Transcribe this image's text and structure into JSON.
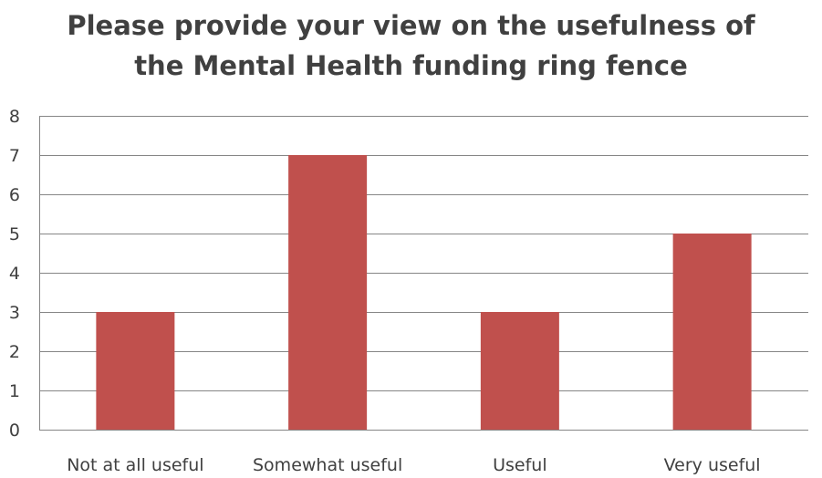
{
  "chart_data": {
    "type": "bar",
    "title_lines": [
      "Please provide your view on the usefulness of",
      "the Mental Health funding ring fence"
    ],
    "categories": [
      "Not at all useful",
      "Somewhat useful",
      "Useful",
      "Very useful"
    ],
    "values": [
      3,
      7,
      3,
      5
    ],
    "ylim": [
      0,
      8
    ],
    "yticks": [
      0,
      1,
      2,
      3,
      4,
      5,
      6,
      7,
      8
    ],
    "grid": true,
    "legend": "none",
    "bar_color": "#c0504d",
    "grid_color": "#868686"
  }
}
